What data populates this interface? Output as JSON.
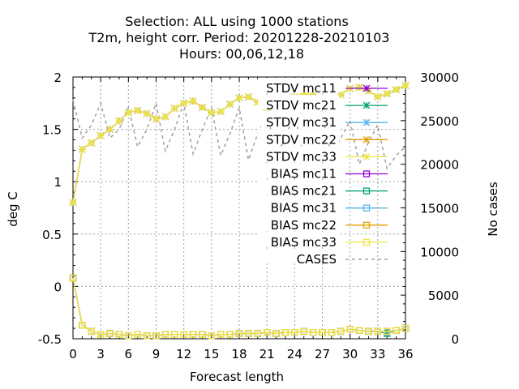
{
  "chart_data": {
    "type": "line",
    "title_lines": [
      "Selection: ALL using  1000 stations",
      "T2m, height corr.    Period: 20201228-20210103",
      "Hours:  00,06,12,18"
    ],
    "xlabel": "Forecast length",
    "ylabel": "deg C",
    "y2label": "No cases",
    "xlim": [
      0,
      36
    ],
    "ylim": [
      -0.5,
      2
    ],
    "y2lim": [
      0,
      30000
    ],
    "xticks": [
      "0",
      "3",
      "6",
      "9",
      "12",
      "15",
      "18",
      "21",
      "24",
      "27",
      "30",
      "33",
      "36"
    ],
    "yticks": [
      "-0.5",
      "0",
      "0.5",
      "1",
      "1.5",
      "2"
    ],
    "y2ticks": [
      "0",
      "5000",
      "10000",
      "15000",
      "20000",
      "25000",
      "30000"
    ],
    "grid": true,
    "legend_position": "top-right",
    "x": [
      0,
      1,
      2,
      3,
      4,
      5,
      6,
      7,
      8,
      9,
      10,
      11,
      12,
      13,
      14,
      15,
      16,
      17,
      18,
      19,
      20,
      21,
      22,
      23,
      24,
      25,
      26,
      27,
      28,
      29,
      30,
      31,
      32,
      33,
      34,
      35,
      36
    ],
    "series": [
      {
        "name": "STDV mc11",
        "axis": "y",
        "color": "#9400d3",
        "marker": "star",
        "dash": false,
        "values": [
          0.8,
          1.31,
          1.37,
          1.44,
          1.5,
          1.58,
          1.66,
          1.68,
          1.65,
          1.6,
          1.62,
          1.7,
          1.75,
          1.77,
          1.71,
          1.66,
          1.67,
          1.74,
          1.8,
          1.81,
          1.76,
          1.71,
          1.72,
          1.77,
          1.81,
          1.84,
          1.83,
          1.77,
          1.78,
          1.83,
          1.89,
          1.9,
          1.87,
          1.81,
          1.84,
          1.88,
          1.92
        ]
      },
      {
        "name": "STDV mc21",
        "axis": "y",
        "color": "#009e73",
        "marker": "star",
        "dash": false,
        "values": [
          0.8,
          1.31,
          1.37,
          1.44,
          1.5,
          1.58,
          1.66,
          1.68,
          1.65,
          1.6,
          1.62,
          1.7,
          1.75,
          1.77,
          1.71,
          1.66,
          1.67,
          1.74,
          1.8,
          1.81,
          1.76,
          1.71,
          1.72,
          1.77,
          1.81,
          1.84,
          1.83,
          1.77,
          1.78,
          1.83,
          1.89,
          1.9,
          1.87,
          1.81,
          1.84,
          1.88,
          1.92
        ]
      },
      {
        "name": "STDV mc31",
        "axis": "y",
        "color": "#56b4e9",
        "marker": "star",
        "dash": false,
        "values": [
          0.8,
          1.31,
          1.37,
          1.44,
          1.5,
          1.58,
          1.66,
          1.68,
          1.65,
          1.6,
          1.62,
          1.7,
          1.75,
          1.77,
          1.71,
          1.66,
          1.67,
          1.74,
          1.8,
          1.81,
          1.76,
          1.71,
          1.72,
          1.77,
          1.81,
          1.84,
          1.83,
          1.77,
          1.78,
          1.83,
          1.89,
          1.9,
          1.87,
          1.81,
          1.84,
          1.88,
          1.92
        ]
      },
      {
        "name": "STDV mc22",
        "axis": "y",
        "color": "#e69f00",
        "marker": "star",
        "dash": false,
        "values": [
          0.8,
          1.31,
          1.37,
          1.44,
          1.5,
          1.58,
          1.66,
          1.68,
          1.65,
          1.6,
          1.62,
          1.7,
          1.75,
          1.77,
          1.71,
          1.66,
          1.67,
          1.74,
          1.8,
          1.81,
          1.76,
          1.71,
          1.72,
          1.77,
          1.81,
          1.84,
          1.83,
          1.77,
          1.78,
          1.83,
          1.89,
          1.9,
          1.87,
          1.81,
          1.84,
          1.88,
          1.92
        ]
      },
      {
        "name": "STDV mc33",
        "axis": "y",
        "color": "#f0e442",
        "marker": "star",
        "dash": false,
        "values": [
          0.8,
          1.31,
          1.37,
          1.44,
          1.5,
          1.58,
          1.66,
          1.68,
          1.65,
          1.6,
          1.62,
          1.7,
          1.75,
          1.77,
          1.71,
          1.66,
          1.67,
          1.74,
          1.8,
          1.81,
          1.76,
          1.71,
          1.72,
          1.77,
          1.81,
          1.84,
          1.83,
          1.77,
          1.78,
          1.83,
          1.89,
          1.9,
          1.87,
          1.81,
          1.84,
          1.88,
          1.92
        ]
      },
      {
        "name": "BIAS mc11",
        "axis": "y",
        "color": "#9400d3",
        "marker": "square",
        "dash": false,
        "values": [
          0.08,
          -0.37,
          -0.43,
          -0.46,
          -0.45,
          -0.46,
          -0.47,
          -0.46,
          -0.47,
          -0.47,
          -0.46,
          -0.46,
          -0.46,
          -0.46,
          -0.46,
          -0.47,
          -0.46,
          -0.46,
          -0.45,
          -0.45,
          -0.45,
          -0.44,
          -0.45,
          -0.44,
          -0.44,
          -0.43,
          -0.44,
          -0.44,
          -0.44,
          -0.43,
          -0.41,
          -0.42,
          -0.43,
          -0.43,
          -0.43,
          -0.42,
          -0.4
        ]
      },
      {
        "name": "BIAS mc21",
        "axis": "y",
        "color": "#009e73",
        "marker": "square",
        "dash": false,
        "values": [
          0.08,
          -0.37,
          -0.43,
          -0.46,
          -0.45,
          -0.46,
          -0.47,
          -0.46,
          -0.47,
          -0.47,
          -0.46,
          -0.46,
          -0.46,
          -0.46,
          -0.46,
          -0.47,
          -0.46,
          -0.46,
          -0.45,
          -0.45,
          -0.45,
          -0.44,
          -0.45,
          -0.44,
          -0.44,
          -0.43,
          -0.44,
          -0.44,
          -0.44,
          -0.43,
          -0.41,
          -0.42,
          -0.43,
          -0.43,
          -0.45,
          -0.42,
          -0.4
        ]
      },
      {
        "name": "BIAS mc31",
        "axis": "y",
        "color": "#56b4e9",
        "marker": "square",
        "dash": false,
        "values": [
          0.08,
          -0.37,
          -0.43,
          -0.46,
          -0.45,
          -0.46,
          -0.47,
          -0.46,
          -0.47,
          -0.47,
          -0.46,
          -0.46,
          -0.46,
          -0.46,
          -0.46,
          -0.47,
          -0.46,
          -0.46,
          -0.45,
          -0.45,
          -0.45,
          -0.44,
          -0.45,
          -0.44,
          -0.44,
          -0.43,
          -0.44,
          -0.44,
          -0.44,
          -0.43,
          -0.41,
          -0.42,
          -0.43,
          -0.43,
          -0.44,
          -0.42,
          -0.4
        ]
      },
      {
        "name": "BIAS mc22",
        "axis": "y",
        "color": "#e69f00",
        "marker": "square",
        "dash": false,
        "values": [
          0.08,
          -0.37,
          -0.43,
          -0.46,
          -0.45,
          -0.46,
          -0.47,
          -0.46,
          -0.47,
          -0.47,
          -0.46,
          -0.46,
          -0.46,
          -0.46,
          -0.46,
          -0.47,
          -0.46,
          -0.46,
          -0.45,
          -0.45,
          -0.45,
          -0.44,
          -0.45,
          -0.44,
          -0.44,
          -0.43,
          -0.44,
          -0.44,
          -0.44,
          -0.43,
          -0.41,
          -0.42,
          -0.43,
          -0.43,
          -0.43,
          -0.42,
          -0.4
        ]
      },
      {
        "name": "BIAS mc33",
        "axis": "y",
        "color": "#f0e442",
        "marker": "square",
        "dash": false,
        "values": [
          0.08,
          -0.37,
          -0.43,
          -0.46,
          -0.45,
          -0.46,
          -0.47,
          -0.46,
          -0.47,
          -0.47,
          -0.46,
          -0.46,
          -0.46,
          -0.46,
          -0.46,
          -0.47,
          -0.46,
          -0.46,
          -0.45,
          -0.45,
          -0.45,
          -0.44,
          -0.45,
          -0.44,
          -0.44,
          -0.43,
          -0.44,
          -0.44,
          -0.44,
          -0.43,
          -0.41,
          -0.42,
          -0.43,
          -0.43,
          -0.43,
          -0.42,
          -0.4
        ]
      },
      {
        "name": "CASES",
        "axis": "y2",
        "color": "#a0a0a0",
        "marker": "none",
        "dash": true,
        "values": [
          27400,
          23000,
          24500,
          27000,
          23000,
          24000,
          26500,
          22000,
          24000,
          27000,
          21500,
          24000,
          27000,
          21200,
          24000,
          26500,
          21000,
          23500,
          26500,
          20500,
          23500,
          26000,
          21000,
          23000,
          26000,
          20500,
          23000,
          25500,
          21000,
          23000,
          25000,
          20000,
          22500,
          24500,
          19500,
          21000,
          22000
        ]
      }
    ]
  }
}
